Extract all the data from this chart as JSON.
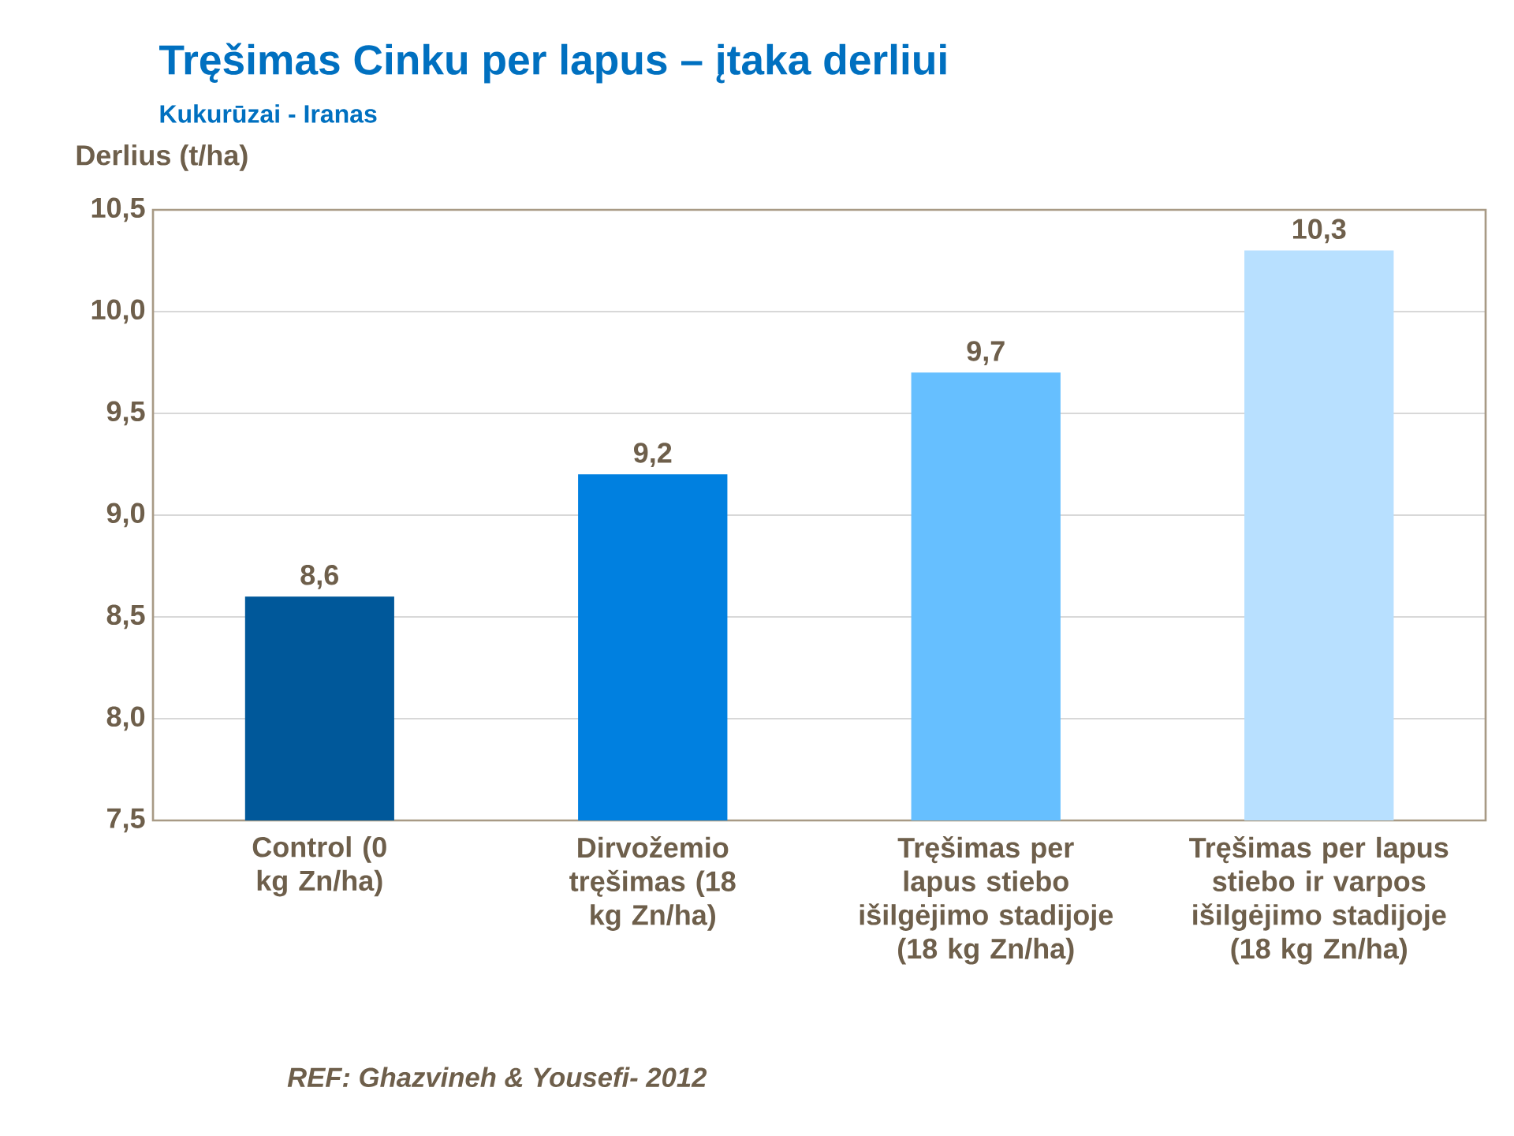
{
  "chart_data": {
    "type": "bar",
    "title": "Tręšimas Cinku per lapus – įtaka derliui",
    "subtitle": "Kukurūzai - Iranas",
    "ylabel": "Derlius (t/ha)",
    "categories": [
      "Control (0 kg Zn/ha)",
      "Dirvožemio tręšimas (18 kg Zn/ha)",
      "Tręšimas per lapus stiebo išilgėjimo stadijoje (18 kg Zn/ha)",
      "Tręšimas per lapus stiebo ir varpos išilgėjimo stadijoje (18 kg Zn/ha)"
    ],
    "values": [
      8.6,
      9.2,
      9.7,
      10.3
    ],
    "value_labels": [
      "8,6",
      "9,2",
      "9,7",
      "10,3"
    ],
    "colors": [
      "#00589a",
      "#0080e0",
      "#66bfff",
      "#b8e0ff"
    ],
    "ylim": [
      7.5,
      10.5
    ],
    "yticks": [
      {
        "value": 7.5,
        "label": "7,5"
      },
      {
        "value": 8.0,
        "label": "8,0"
      },
      {
        "value": 8.5,
        "label": "8,5"
      },
      {
        "value": 9.0,
        "label": "9,0"
      },
      {
        "value": 9.5,
        "label": "9,5"
      },
      {
        "value": 10.0,
        "label": "10,0"
      },
      {
        "value": 10.5,
        "label": "10,5"
      }
    ],
    "grid": "y",
    "annotations": [
      "REF: Ghazvineh & Yousefi- 2012"
    ]
  }
}
